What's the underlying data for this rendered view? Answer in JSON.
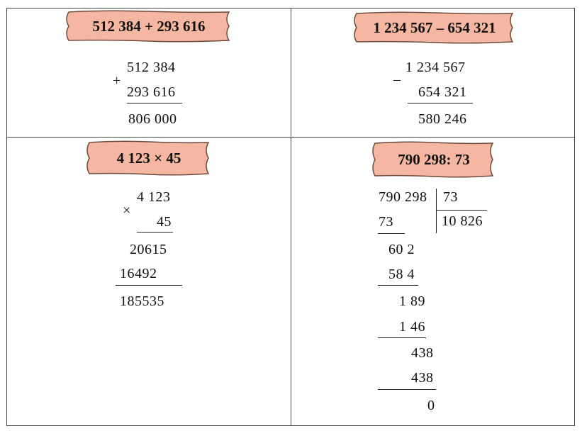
{
  "problems": {
    "addition": {
      "title": "512 384 + 293 616",
      "operand1": "512 384",
      "operator": "+",
      "operand2": "293 616",
      "result": "806 000"
    },
    "subtraction": {
      "title": "1 234 567 – 654 321",
      "operand1": "1 234 567",
      "operator": "–",
      "operand2": "654 321",
      "result": "580 246"
    },
    "multiplication": {
      "title": "4 123 × 45",
      "operand1": "4 123",
      "operator": "×",
      "operand2": "45",
      "partial1": "20615",
      "partial2": "16492",
      "result": "185535"
    },
    "division": {
      "title": "790 298: 73",
      "dividend": "790 298",
      "divisor": "73",
      "quotient": "10 826",
      "steps": [
        "73",
        "60 2",
        "58 4",
        "1 89",
        "1 46",
        "438",
        "438",
        "0"
      ]
    }
  },
  "colors": {
    "banner_fill": "#f5b7a1",
    "banner_stroke": "#6b4a3c"
  }
}
